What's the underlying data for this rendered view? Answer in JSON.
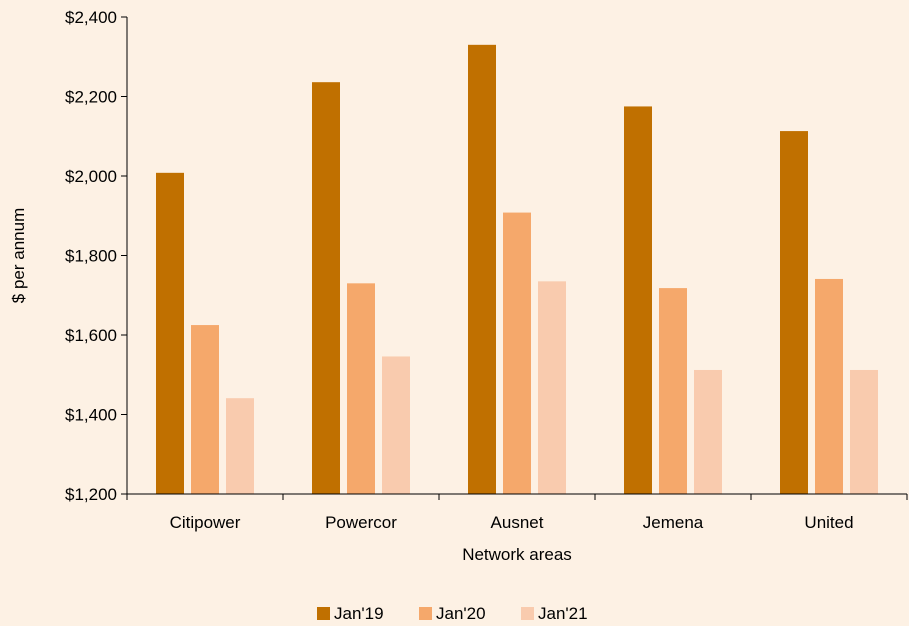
{
  "chart_data": {
    "type": "bar",
    "title": "",
    "xlabel": "Network areas",
    "ylabel": "$ per annum",
    "ylim": [
      1200,
      2400
    ],
    "yticks": [
      1200,
      1400,
      1600,
      1800,
      2000,
      2200,
      2400
    ],
    "ytick_labels": [
      "$1,200",
      "$1,400",
      "$1,600",
      "$1,800",
      "$2,000",
      "$2,200",
      "$2,400"
    ],
    "categories": [
      "Citipower",
      "Powercor",
      "Ausnet",
      "Jemena",
      "United"
    ],
    "series": [
      {
        "name": "Jan'19",
        "color": "#C07000",
        "values": [
          2008,
          2236,
          2330,
          2175,
          2113
        ]
      },
      {
        "name": "Jan'20",
        "color": "#F5A86B",
        "values": [
          1625,
          1730,
          1908,
          1718,
          1741
        ]
      },
      {
        "name": "Jan'21",
        "color": "#F9CBAE",
        "values": [
          1441,
          1546,
          1735,
          1512,
          1512
        ]
      }
    ],
    "legend_position": "bottom",
    "grid": false,
    "background": "#FDF1E4"
  }
}
